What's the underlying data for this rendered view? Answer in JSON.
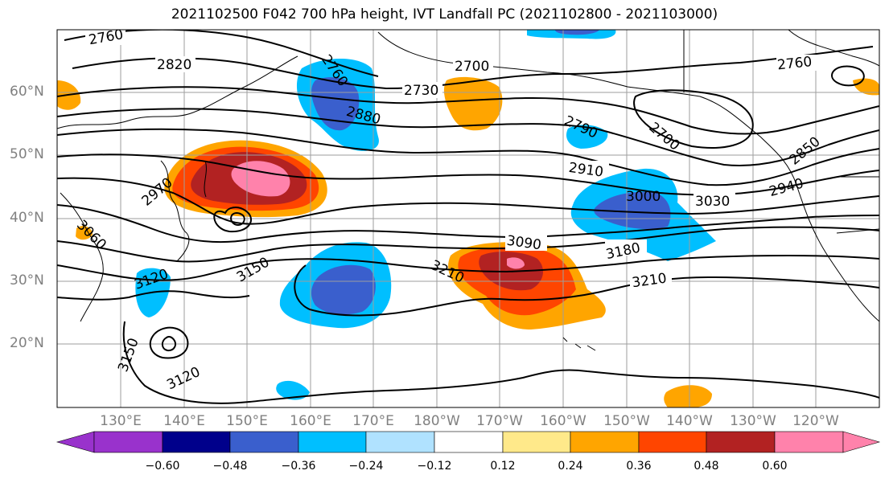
{
  "title": "2021102500 F042 700 hPa height, IVT Landfall PC (2021102800 - 2021103000)",
  "lat_labels": [
    "60°N",
    "50°N",
    "40°N",
    "30°N",
    "20°N"
  ],
  "lon_labels": [
    "130°E",
    "140°E",
    "150°E",
    "160°E",
    "170°E",
    "180°W",
    "170°W",
    "160°W",
    "150°W",
    "140°W",
    "130°W",
    "120°W"
  ],
  "contour_labels": [
    "2760",
    "2820",
    "2760",
    "2700",
    "2730",
    "2880",
    "2790",
    "2700",
    "2760",
    "2850",
    "2970",
    "2910",
    "3000",
    "3030",
    "2940",
    "3060",
    "3090",
    "3180",
    "3120",
    "3150",
    "3210",
    "3210",
    "3150",
    "3120"
  ],
  "colorbar": {
    "ticks": [
      "−0.60",
      "−0.48",
      "−0.36",
      "−0.24",
      "−0.12",
      "0.12",
      "0.24",
      "0.36",
      "0.48",
      "0.60"
    ],
    "colors": [
      "#9932cc",
      "#00008b",
      "#3a5fcd",
      "#00bfff",
      "#b0e2ff",
      "#ffffff",
      "#ffe98a",
      "#ffa500",
      "#ff4500",
      "#b22222",
      "#ff82ab"
    ]
  }
}
